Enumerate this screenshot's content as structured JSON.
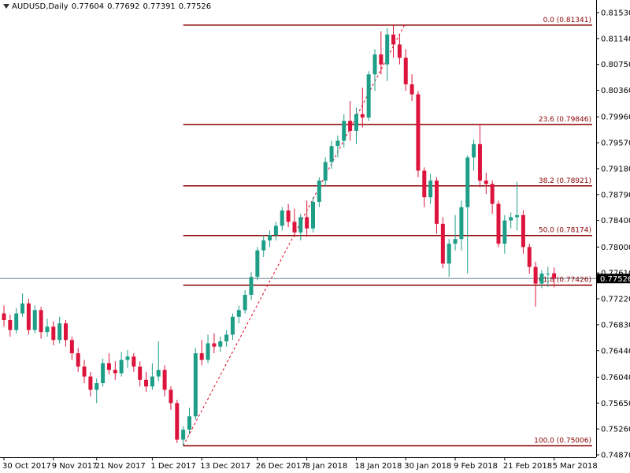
{
  "chart_data": {
    "type": "candlestick",
    "symbol": "AUDUSD,Daily",
    "header_values": [
      0.77604,
      0.77692,
      0.77391,
      0.77526
    ],
    "last_price": 0.77526,
    "colors": {
      "up": "#1e9e87",
      "down": "#dc143c",
      "fib": "#8b0000",
      "trend": "#e0001b",
      "price_line": "#778899"
    },
    "ylim": [
      0.7487,
      0.8153
    ],
    "yticks": [
      {
        "value": 0.8153,
        "label": "0.81530"
      },
      {
        "value": 0.8114,
        "label": "0.81140"
      },
      {
        "value": 0.8075,
        "label": "0.80750"
      },
      {
        "value": 0.8036,
        "label": "0.80360"
      },
      {
        "value": 0.7996,
        "label": "0.79960"
      },
      {
        "value": 0.7957,
        "label": "0.79570"
      },
      {
        "value": 0.7918,
        "label": "0.79180"
      },
      {
        "value": 0.7879,
        "label": "0.78790"
      },
      {
        "value": 0.784,
        "label": "0.78400"
      },
      {
        "value": 0.78,
        "label": "0.78000"
      },
      {
        "value": 0.7761,
        "label": "0.77610"
      },
      {
        "value": 0.7722,
        "label": "0.77220"
      },
      {
        "value": 0.7683,
        "label": "0.76830"
      },
      {
        "value": 0.7644,
        "label": "0.76440"
      },
      {
        "value": 0.7604,
        "label": "0.76040"
      },
      {
        "value": 0.7565,
        "label": "0.75650"
      },
      {
        "value": 0.7526,
        "label": "0.75260"
      },
      {
        "value": 0.7487,
        "label": "0.74870"
      }
    ],
    "xticks": [
      {
        "value": 0,
        "label": "30 Oct 2017"
      },
      {
        "value": 8,
        "label": "9 Nov 2017"
      },
      {
        "value": 15,
        "label": "21 Nov 2017"
      },
      {
        "value": 24,
        "label": "1 Dec 2017"
      },
      {
        "value": 32,
        "label": "13 Dec 2017"
      },
      {
        "value": 41,
        "label": "26 Dec 2017"
      },
      {
        "value": 49,
        "label": "8 Jan 2018"
      },
      {
        "value": 57,
        "label": "18 Jan 2018"
      },
      {
        "value": 65,
        "label": "30 Jan 2018"
      },
      {
        "value": 73,
        "label": "9 Feb 2018"
      },
      {
        "value": 81,
        "label": "21 Feb 2018"
      },
      {
        "value": 89,
        "label": "5 Mar 2018"
      }
    ],
    "fib_levels": [
      {
        "label": "0.0 (0.81341)",
        "price": 0.81341
      },
      {
        "label": "23.6 (0.79846)",
        "price": 0.79846
      },
      {
        "label": "38.2 (0.78921)",
        "price": 0.78921
      },
      {
        "label": "50.0 (0.78174)",
        "price": 0.78174
      },
      {
        "label": "61.8 (0.77426)",
        "price": 0.77426
      },
      {
        "label": "100.0 (0.75006)",
        "price": 0.75006
      }
    ],
    "candles": [
      [
        0.77,
        0.7712,
        0.768,
        0.769
      ],
      [
        0.769,
        0.7698,
        0.7665,
        0.7675
      ],
      [
        0.7675,
        0.7708,
        0.767,
        0.77
      ],
      [
        0.77,
        0.773,
        0.7695,
        0.7715
      ],
      [
        0.7715,
        0.7722,
        0.7668,
        0.7675
      ],
      [
        0.7675,
        0.7712,
        0.767,
        0.7705
      ],
      [
        0.7705,
        0.771,
        0.7662,
        0.7672
      ],
      [
        0.7672,
        0.7692,
        0.7665,
        0.768
      ],
      [
        0.768,
        0.7688,
        0.7652,
        0.766
      ],
      [
        0.766,
        0.7695,
        0.7655,
        0.7685
      ],
      [
        0.7685,
        0.769,
        0.765,
        0.766
      ],
      [
        0.766,
        0.7665,
        0.763,
        0.764
      ],
      [
        0.764,
        0.7648,
        0.7612,
        0.762
      ],
      [
        0.762,
        0.763,
        0.7595,
        0.7605
      ],
      [
        0.7605,
        0.7612,
        0.7575,
        0.7585
      ],
      [
        0.7585,
        0.7602,
        0.7565,
        0.7595
      ],
      [
        0.7595,
        0.7632,
        0.759,
        0.7625
      ],
      [
        0.7625,
        0.764,
        0.7608,
        0.7615
      ],
      [
        0.7615,
        0.7628,
        0.76,
        0.761
      ],
      [
        0.761,
        0.7642,
        0.7605,
        0.763
      ],
      [
        0.763,
        0.7645,
        0.7618,
        0.7635
      ],
      [
        0.7635,
        0.764,
        0.7612,
        0.762
      ],
      [
        0.762,
        0.7628,
        0.759,
        0.76
      ],
      [
        0.76,
        0.7612,
        0.7582,
        0.759
      ],
      [
        0.759,
        0.7625,
        0.7585,
        0.7605
      ],
      [
        0.7605,
        0.7658,
        0.7598,
        0.7615
      ],
      [
        0.7615,
        0.7622,
        0.7575,
        0.7585
      ],
      [
        0.7585,
        0.759,
        0.7555,
        0.7565
      ],
      [
        0.7565,
        0.757,
        0.7505,
        0.751
      ],
      [
        0.751,
        0.753,
        0.75006,
        0.7525
      ],
      [
        0.7525,
        0.7558,
        0.7518,
        0.7545
      ],
      [
        0.7545,
        0.7648,
        0.754,
        0.764
      ],
      [
        0.764,
        0.766,
        0.7622,
        0.763
      ],
      [
        0.763,
        0.7668,
        0.7625,
        0.7655
      ],
      [
        0.7655,
        0.767,
        0.764,
        0.765
      ],
      [
        0.765,
        0.7665,
        0.7642,
        0.7658
      ],
      [
        0.7658,
        0.7675,
        0.765,
        0.7668
      ],
      [
        0.7668,
        0.77,
        0.766,
        0.7695
      ],
      [
        0.7695,
        0.7712,
        0.7685,
        0.7705
      ],
      [
        0.7705,
        0.7735,
        0.77,
        0.7728
      ],
      [
        0.7728,
        0.7762,
        0.772,
        0.7755
      ],
      [
        0.7755,
        0.78,
        0.775,
        0.7795
      ],
      [
        0.7795,
        0.7818,
        0.7785,
        0.781
      ],
      [
        0.781,
        0.7825,
        0.78,
        0.7818
      ],
      [
        0.7818,
        0.7838,
        0.781,
        0.7832
      ],
      [
        0.7832,
        0.786,
        0.7825,
        0.7855
      ],
      [
        0.7855,
        0.7865,
        0.783,
        0.7838
      ],
      [
        0.7838,
        0.7858,
        0.7815,
        0.7822
      ],
      [
        0.7822,
        0.785,
        0.781,
        0.7845
      ],
      [
        0.7845,
        0.787,
        0.7815,
        0.7828
      ],
      [
        0.7828,
        0.7875,
        0.7822,
        0.7868
      ],
      [
        0.7868,
        0.7905,
        0.786,
        0.79
      ],
      [
        0.79,
        0.7935,
        0.7892,
        0.7928
      ],
      [
        0.7928,
        0.796,
        0.7918,
        0.7952
      ],
      [
        0.7952,
        0.7968,
        0.7935,
        0.796
      ],
      [
        0.796,
        0.8,
        0.795,
        0.799
      ],
      [
        0.799,
        0.802,
        0.796,
        0.7975
      ],
      [
        0.7975,
        0.801,
        0.7955,
        0.8
      ],
      [
        0.8,
        0.804,
        0.798,
        0.7995
      ],
      [
        0.7995,
        0.8065,
        0.799,
        0.806
      ],
      [
        0.806,
        0.8098,
        0.8035,
        0.809
      ],
      [
        0.809,
        0.8125,
        0.806,
        0.8075
      ],
      [
        0.8075,
        0.813,
        0.805,
        0.812
      ],
      [
        0.812,
        0.81341,
        0.8085,
        0.8105
      ],
      [
        0.8105,
        0.812,
        0.8075,
        0.8085
      ],
      [
        0.8085,
        0.8098,
        0.8035,
        0.8045
      ],
      [
        0.8045,
        0.806,
        0.802,
        0.803
      ],
      [
        0.803,
        0.8035,
        0.7905,
        0.7915
      ],
      [
        0.7915,
        0.792,
        0.786,
        0.7875
      ],
      [
        0.7875,
        0.791,
        0.7865,
        0.79
      ],
      [
        0.79,
        0.7905,
        0.782,
        0.7835
      ],
      [
        0.7835,
        0.7845,
        0.7768,
        0.7775
      ],
      [
        0.7775,
        0.7812,
        0.7755,
        0.7805
      ],
      [
        0.7805,
        0.7848,
        0.7795,
        0.7812
      ],
      [
        0.7812,
        0.787,
        0.7795,
        0.786
      ],
      [
        0.786,
        0.7938,
        0.776,
        0.7935
      ],
      [
        0.7935,
        0.7962,
        0.7915,
        0.7955
      ],
      [
        0.7955,
        0.7985,
        0.789,
        0.79
      ],
      [
        0.79,
        0.7912,
        0.788,
        0.7895
      ],
      [
        0.7895,
        0.79,
        0.785,
        0.7865
      ],
      [
        0.7865,
        0.787,
        0.78,
        0.7805
      ],
      [
        0.7805,
        0.7848,
        0.779,
        0.784
      ],
      [
        0.784,
        0.7852,
        0.7828,
        0.7845
      ],
      [
        0.7845,
        0.7898,
        0.7825,
        0.7848
      ],
      [
        0.7848,
        0.7855,
        0.779,
        0.78
      ],
      [
        0.78,
        0.7805,
        0.776,
        0.777
      ],
      [
        0.777,
        0.7778,
        0.771,
        0.7745
      ],
      [
        0.7745,
        0.7765,
        0.7738,
        0.776
      ],
      [
        0.776,
        0.777,
        0.774,
        0.776
      ],
      [
        0.77604,
        0.77692,
        0.77391,
        0.77526
      ]
    ]
  }
}
